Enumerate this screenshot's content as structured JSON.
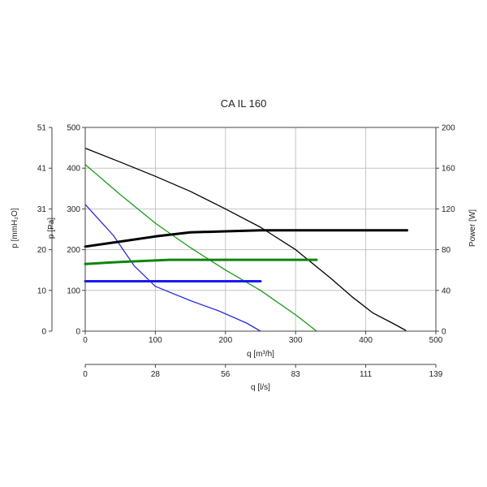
{
  "chart_data": {
    "type": "line",
    "title": "CA IL 160",
    "xlabel": "q [m³/h]",
    "xlim": [
      0,
      500
    ],
    "xticks": [
      "0",
      "100",
      "200",
      "300",
      "400",
      "500"
    ],
    "ylabel_left": "p [Pa]",
    "ylim": [
      0,
      500
    ],
    "yticks": [
      "0",
      "100",
      "200",
      "300",
      "400",
      "500"
    ],
    "ylabel_outer": "p [mmH₂O]",
    "yticks_outer": [
      "0",
      "10",
      "20",
      "31",
      "41",
      "51"
    ],
    "ylabel_right": "Power [W]",
    "ylim_right": [
      0,
      200
    ],
    "yticks_right": [
      "0",
      "40",
      "80",
      "120",
      "160",
      "200"
    ],
    "xlabel_secondary": "q [l/s]",
    "xticks_secondary": [
      "0",
      "28",
      "56",
      "83",
      "111",
      "139"
    ],
    "grid": true,
    "series": [
      {
        "color": "#000000",
        "kind": "pressure",
        "x": [
          0,
          50,
          100,
          150,
          200,
          250,
          300,
          350,
          380,
          410,
          440,
          457
        ],
        "y": [
          449,
          415,
          380,
          343,
          300,
          255,
          200,
          130,
          85,
          45,
          18,
          2
        ]
      },
      {
        "color": "#1a9a1a",
        "kind": "pressure",
        "x": [
          0,
          50,
          100,
          150,
          200,
          250,
          300,
          330
        ],
        "y": [
          409,
          335,
          265,
          205,
          150,
          100,
          40,
          0
        ]
      },
      {
        "color": "#2b2bdd",
        "kind": "pressure",
        "x": [
          0,
          40,
          70,
          100,
          150,
          190,
          230,
          250
        ],
        "y": [
          311,
          235,
          160,
          110,
          75,
          50,
          20,
          0
        ]
      },
      {
        "color": "#000000",
        "kind": "power",
        "x": [
          0,
          50,
          100,
          150,
          200,
          250,
          300,
          459
        ],
        "y": [
          83,
          88,
          93,
          97,
          98,
          99,
          99,
          99
        ]
      },
      {
        "color": "#108410",
        "kind": "power",
        "x": [
          0,
          50,
          120,
          330
        ],
        "y": [
          66,
          68,
          70,
          70
        ]
      },
      {
        "color": "#1a1aee",
        "kind": "power",
        "x": [
          0,
          250
        ],
        "y": [
          49,
          49
        ]
      }
    ]
  }
}
